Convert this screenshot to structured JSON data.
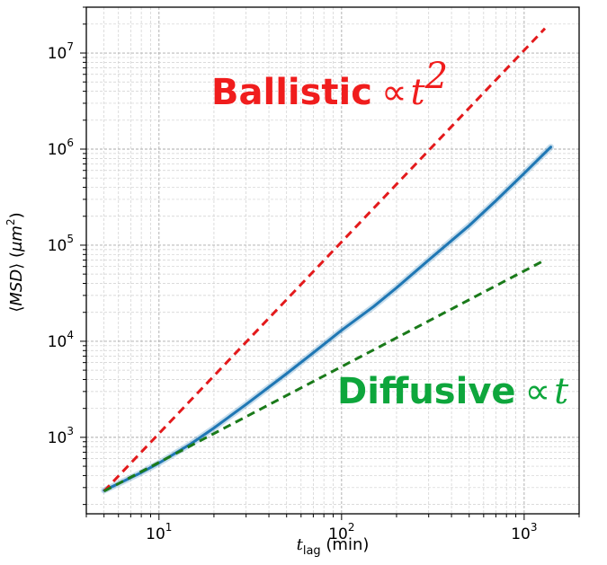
{
  "chart_data": {
    "type": "line",
    "title": "",
    "xscale": "log",
    "yscale": "log",
    "xlim": [
      4.0,
      2000
    ],
    "ylim": [
      160,
      30000000
    ],
    "grid": true,
    "x_ticks": [
      {
        "base": "10",
        "exp": "1"
      },
      {
        "base": "10",
        "exp": "2"
      },
      {
        "base": "10",
        "exp": "3"
      }
    ],
    "y_ticks": [
      {
        "base": "10",
        "exp": "3"
      },
      {
        "base": "10",
        "exp": "4"
      },
      {
        "base": "10",
        "exp": "5"
      },
      {
        "base": "10",
        "exp": "6"
      },
      {
        "base": "10",
        "exp": "7"
      }
    ],
    "xlabel": {
      "var": "t",
      "sub": "lag",
      "unit": " (min)"
    },
    "ylabel": {
      "pre": "⟨",
      "var": "MSD",
      "post": "⟩ (",
      "unit": "μm",
      "sup": "2",
      "close": ")"
    },
    "series": [
      {
        "style": "solid",
        "color": "#1f77b4",
        "x": [
          5,
          6,
          8,
          10,
          15,
          20,
          30,
          50,
          70,
          100,
          150,
          200,
          300,
          500,
          700,
          1000,
          1400
        ],
        "y": [
          280,
          330,
          430,
          540,
          860,
          1250,
          2200,
          4600,
          7600,
          13000,
          23000,
          36000,
          70000,
          160000,
          290000,
          560000,
          1050000
        ]
      },
      {
        "style": "dashed",
        "color": "#e31a1c",
        "x": [
          5,
          1300
        ],
        "y": [
          275,
          18000000
        ]
      },
      {
        "style": "dashed",
        "color": "#1a7a1a",
        "x": [
          5,
          1300
        ],
        "y": [
          275,
          70000
        ]
      }
    ],
    "annotations": [
      {
        "text": "Ballistic",
        "symbol": "∝",
        "math": "t",
        "sup": "2",
        "color": "#f01d1d"
      },
      {
        "text": "Diffusive",
        "symbol": "∝",
        "math": "t",
        "sup": "",
        "color": "#0ea63c"
      }
    ]
  }
}
